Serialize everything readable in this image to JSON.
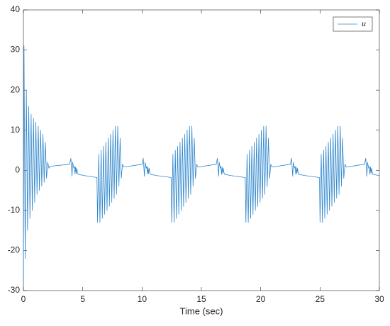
{
  "chart_data": {
    "type": "line",
    "xlabel": "Time (sec)",
    "xlim": [
      0,
      30
    ],
    "xticks": [
      0,
      5,
      10,
      15,
      20,
      25,
      30
    ],
    "ylim": [
      -30,
      40
    ],
    "yticks": [
      -30,
      -20,
      -10,
      0,
      10,
      20,
      30,
      40
    ],
    "grid": false,
    "legend": "upper right",
    "x": [
      0,
      0.05,
      0.15,
      0.25,
      0.35,
      0.45,
      0.55,
      0.65,
      0.75,
      0.85,
      0.95,
      1.05,
      1.15,
      1.25,
      1.35,
      1.45,
      1.55,
      1.65,
      1.75,
      1.85,
      1.95,
      2.05,
      2.15,
      2.25,
      3.9,
      4.0,
      4.1,
      4.15,
      4.25,
      4.3,
      4.35,
      4.4,
      4.45,
      4.5,
      4.55,
      4.6,
      5.1,
      6.2,
      6.25,
      6.35,
      6.45,
      6.55,
      6.65,
      6.75,
      6.85,
      6.95,
      7.05,
      7.15,
      7.25,
      7.35,
      7.45,
      7.55,
      7.65,
      7.75,
      7.85,
      7.95,
      8.05,
      8.15,
      8.25,
      8.35,
      8.45,
      10,
      10.1,
      10.2,
      10.25,
      10.35,
      10.4,
      10.45,
      10.5,
      10.55,
      10.6,
      10.65,
      10.7,
      11.2,
      12.45,
      12.5,
      12.6,
      12.7,
      12.8,
      12.9,
      13,
      13.1,
      13.2,
      13.3,
      13.4,
      13.5,
      13.6,
      13.7,
      13.8,
      13.9,
      14,
      14.1,
      14.2,
      14.3,
      14.4,
      14.5,
      14.6,
      14.7,
      16.25,
      16.35,
      16.45,
      16.5,
      16.6,
      16.65,
      16.7,
      16.75,
      16.8,
      16.85,
      16.9,
      16.95,
      17.45,
      18.7,
      18.75,
      18.85,
      18.95,
      19.05,
      19.15,
      19.25,
      19.35,
      19.45,
      19.55,
      19.65,
      19.75,
      19.85,
      19.95,
      20.05,
      20.15,
      20.25,
      20.35,
      20.45,
      20.55,
      20.65,
      20.75,
      20.85,
      20.95,
      22.5,
      22.6,
      22.7,
      22.75,
      22.85,
      22.9,
      22.95,
      23,
      23.05,
      23.1,
      23.15,
      23.2,
      23.7,
      24.95,
      25,
      25.1,
      25.2,
      25.3,
      25.4,
      25.5,
      25.6,
      25.7,
      25.8,
      25.9,
      26,
      26.1,
      26.2,
      26.3,
      26.4,
      26.5,
      26.6,
      26.7,
      26.8,
      26.9,
      27,
      27.1,
      27.2,
      28.75,
      28.85,
      28.95,
      29,
      29.1,
      29.15,
      29.2,
      29.25,
      29.3,
      29.35,
      29.4,
      29.45,
      29.95,
      30
    ],
    "series": [
      {
        "name": "u",
        "color": "#2f86cc",
        "values": [
          -28,
          31,
          -22,
          20,
          -15,
          16,
          -12,
          14,
          -10,
          13,
          -8,
          12,
          -6,
          11,
          -5,
          10,
          -4,
          9,
          -3,
          7,
          -2,
          2,
          0.5,
          1,
          1.5,
          3,
          -1.5,
          2,
          0.5,
          1,
          -1,
          0.8,
          -0.8,
          0.5,
          -0.5,
          -1,
          -1.3,
          -1.8,
          -13,
          4,
          -13,
          5,
          -12,
          6,
          -11,
          7,
          -10,
          8,
          -9,
          9,
          -8,
          10,
          -7,
          11,
          -6,
          11,
          -4,
          8,
          -2,
          1.5,
          0.8,
          1.5,
          3,
          -1.5,
          2,
          0.5,
          1,
          -1,
          0.8,
          -0.8,
          0.5,
          -0.5,
          -1,
          -1.3,
          -1.8,
          -13,
          4,
          -13,
          5,
          -12,
          6,
          -11,
          7,
          -10,
          8,
          -9,
          9,
          -8,
          10,
          -7,
          11,
          -6,
          11,
          -4,
          8,
          -2,
          1.5,
          0.8,
          1.5,
          3,
          -1.5,
          2,
          0.5,
          1,
          -1,
          0.8,
          -0.8,
          0.5,
          -0.5,
          -1,
          -1.3,
          -1.8,
          -13,
          4,
          -13,
          5,
          -12,
          6,
          -11,
          7,
          -10,
          8,
          -9,
          9,
          -8,
          10,
          -7,
          11,
          -6,
          11,
          -4,
          8,
          -2,
          1.5,
          0.8,
          1.5,
          3,
          -1.5,
          2,
          0.5,
          1,
          -1,
          0.8,
          -0.8,
          0.5,
          -0.5,
          -1,
          -1.3,
          -1.8,
          -13,
          4,
          -13,
          5,
          -12,
          6,
          -11,
          7,
          -10,
          8,
          -9,
          9,
          -8,
          10,
          -7,
          11,
          -6,
          11,
          -4,
          8,
          -2,
          1.5,
          0.8,
          1.5,
          3,
          -1.5,
          2,
          0.5,
          1,
          -1,
          0.8,
          -0.8,
          0.5,
          -0.5,
          -1,
          -1.3,
          -1.4
        ]
      }
    ]
  }
}
